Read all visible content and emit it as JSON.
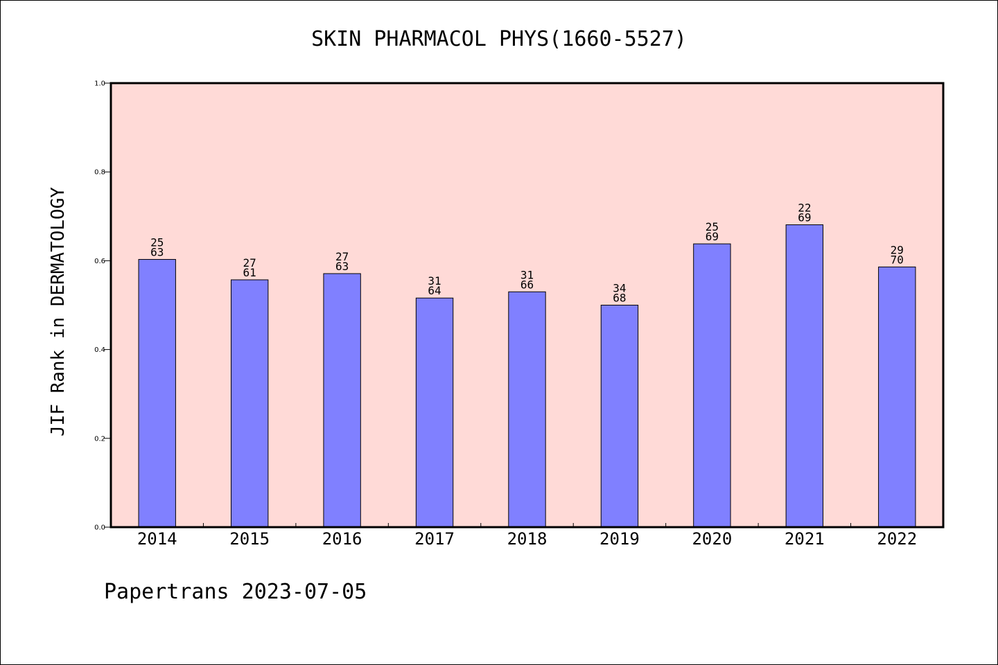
{
  "chart_data": {
    "type": "bar",
    "title": "SKIN PHARMACOL PHYS(1660-5527)",
    "xlabel": "",
    "ylabel": "JIF Rank in DERMATOLOGY",
    "categories": [
      "2014",
      "2015",
      "2016",
      "2017",
      "2018",
      "2019",
      "2020",
      "2021",
      "2022"
    ],
    "values": [
      0.603,
      0.557,
      0.571,
      0.516,
      0.53,
      0.5,
      0.638,
      0.681,
      0.586
    ],
    "rank": [
      "25",
      "27",
      "27",
      "31",
      "31",
      "34",
      "25",
      "22",
      "29"
    ],
    "total": [
      "63",
      "61",
      "63",
      "64",
      "66",
      "68",
      "69",
      "69",
      "70"
    ],
    "ylim": [
      0,
      1.0
    ],
    "yticks": [
      "0.0",
      "0.2",
      "0.4",
      "0.6",
      "0.8",
      "1.0"
    ],
    "grid": false,
    "legend": "none",
    "colors": {
      "plot_background": "#FFDAD7",
      "bar_fill": "#8080FF",
      "bar_stroke": "#000000"
    }
  },
  "footer": "Papertrans 2023-07-05"
}
